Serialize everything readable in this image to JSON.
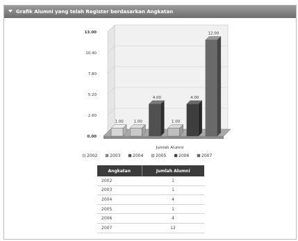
{
  "panel": {
    "title": "Grafik Alumni yang telah Register berdasarkan Angkatan"
  },
  "colors": {
    "header": "#7a7a7a",
    "bar_fill": "#555555",
    "bar_top": "#7c7c7c",
    "bar_side": "#333333",
    "bar_light": "#d6d6d6",
    "grid": "#cfcfcf",
    "table_header": "#3b3b3b"
  },
  "chart_data": {
    "type": "bar",
    "categories": [
      "2002",
      "2003",
      "2004",
      "2005",
      "2006",
      "2007"
    ],
    "values": [
      1,
      1,
      4,
      1,
      4,
      12
    ],
    "value_labels": [
      "1.00",
      "1.00",
      "4.00",
      "1.00",
      "4.00",
      "12.00"
    ],
    "ylim": [
      0,
      13
    ],
    "yticks": [
      "0.00",
      "2.60",
      "5.20",
      "7.80",
      "10.40",
      "13.00"
    ],
    "xlabel": "Jumlah Alumni",
    "ylabel": "",
    "legend": [
      "2002",
      "2003",
      "2004",
      "2005",
      "2006",
      "2007"
    ],
    "legend_position": "bottom",
    "grid": true,
    "style": "3d"
  },
  "table": {
    "headers": [
      "Angkatan",
      "Jumlah Alumni"
    ],
    "rows": [
      [
        "2002",
        "1"
      ],
      [
        "2003",
        "1"
      ],
      [
        "2004",
        "4"
      ],
      [
        "2005",
        "1"
      ],
      [
        "2006",
        "4"
      ],
      [
        "2007",
        "12"
      ]
    ]
  }
}
